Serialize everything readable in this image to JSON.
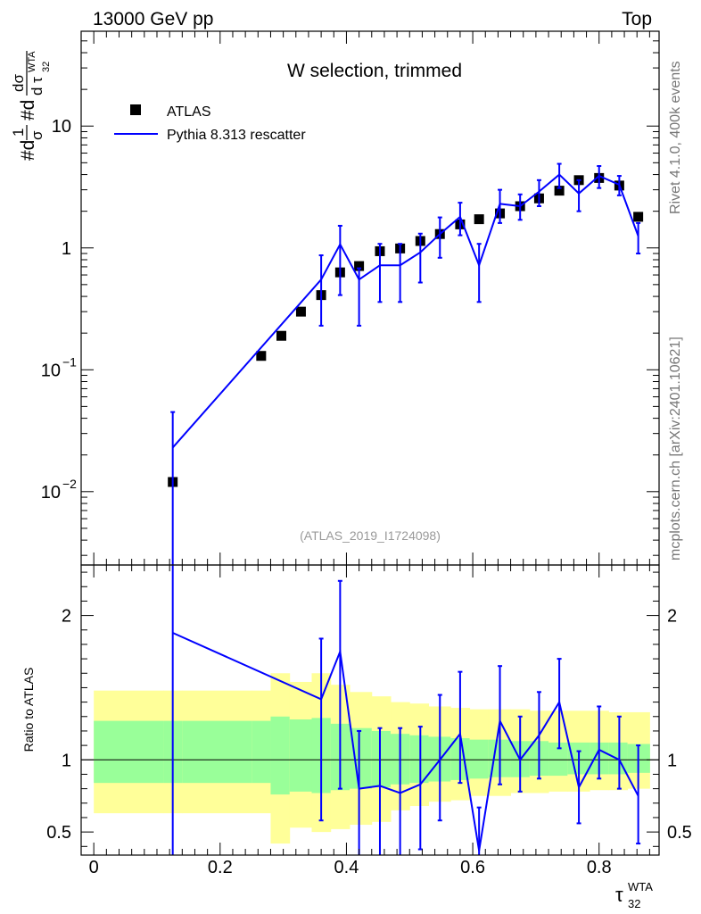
{
  "header": {
    "left": "13000 GeV pp",
    "right": "Top"
  },
  "main_panel": {
    "title": "W selection, trimmed",
    "ylabel_parts": [
      "#d",
      "1",
      "σ",
      "#d",
      "dσ",
      "d τ",
      "WTA",
      "32"
    ],
    "analysis_id": "(ATLAS_2019_I1724098)"
  },
  "ratio_panel": {
    "ylabel": "Ratio to ATLAS"
  },
  "side_text": {
    "rivet": "Rivet 4.1.0,  400k events",
    "mcplots": "mcplots.cern.ch [arXiv:2401.10621]"
  },
  "xaxis_label": {
    "base": "τ",
    "sup": "WTA",
    "sub": "32"
  },
  "chart_data": [
    {
      "type": "scatter",
      "panel": "main",
      "yscale": "log",
      "xlim": [
        -0.02,
        0.895
      ],
      "ylim": [
        0.0025,
        60
      ],
      "xticks": [
        "0",
        "0.2",
        "0.4",
        "0.6",
        "0.8"
      ],
      "xtick_values": [
        0,
        0.2,
        0.4,
        0.6,
        0.8
      ],
      "yticks": [
        {
          "value": 0.01,
          "base": "10",
          "exp": "−2"
        },
        {
          "value": 0.1,
          "base": "10",
          "exp": "−1"
        },
        {
          "value": 1,
          "base": "1",
          "exp": ""
        },
        {
          "value": 10,
          "base": "10",
          "exp": ""
        }
      ],
      "legend": [
        {
          "label": "ATLAS",
          "marker": "square",
          "color": "#000000"
        },
        {
          "label": "Pythia 8.313 rescatter",
          "marker": "line",
          "color": "#0000ff"
        }
      ],
      "series": [
        {
          "name": "ATLAS",
          "x": [
            0.125,
            0.265,
            0.297,
            0.328,
            0.36,
            0.39,
            0.42,
            0.453,
            0.485,
            0.517,
            0.548,
            0.58,
            0.61,
            0.643,
            0.675,
            0.705,
            0.737,
            0.768,
            0.8,
            0.832,
            0.862
          ],
          "y": [
            0.012,
            0.13,
            0.19,
            0.3,
            0.41,
            0.63,
            0.71,
            0.94,
            0.99,
            1.14,
            1.3,
            1.56,
            1.72,
            1.92,
            2.2,
            2.55,
            2.95,
            3.6,
            3.75,
            3.25,
            1.8
          ]
        },
        {
          "name": "Pythia 8.313 rescatter",
          "x": [
            0.125,
            0.36,
            0.39,
            0.42,
            0.453,
            0.485,
            0.517,
            0.548,
            0.58,
            0.61,
            0.643,
            0.675,
            0.705,
            0.737,
            0.768,
            0.8,
            0.832,
            0.862
          ],
          "y": [
            0.023,
            0.55,
            1.07,
            0.55,
            0.72,
            0.72,
            0.92,
            1.3,
            1.8,
            0.72,
            2.3,
            2.2,
            2.9,
            4.0,
            2.8,
            3.9,
            3.3,
            1.25
          ],
          "yerr_low": [
            0.023,
            0.32,
            0.66,
            0.32,
            0.36,
            0.36,
            0.4,
            0.47,
            0.53,
            0.36,
            0.7,
            0.5,
            0.7,
            0.9,
            0.8,
            0.8,
            0.6,
            0.35
          ],
          "yerr_high": [
            0.022,
            0.32,
            0.45,
            0.13,
            0.36,
            0.36,
            0.39,
            0.48,
            0.55,
            0.36,
            0.7,
            0.55,
            0.7,
            0.9,
            0.8,
            0.8,
            0.6,
            0.35
          ]
        }
      ]
    },
    {
      "type": "line",
      "panel": "ratio",
      "xlim": [
        -0.02,
        0.895
      ],
      "ylim": [
        0.34,
        2.35
      ],
      "yticks": [
        "0.5",
        "1",
        "2"
      ],
      "ytick_values": [
        0.5,
        1,
        2
      ],
      "reference_line": 1,
      "uncertainty_bands": {
        "edges": [
          0,
          0.11,
          0.14,
          0.25,
          0.28,
          0.31,
          0.345,
          0.375,
          0.405,
          0.44,
          0.47,
          0.5,
          0.53,
          0.565,
          0.595,
          0.625,
          0.66,
          0.69,
          0.72,
          0.75,
          0.785,
          0.815,
          0.845,
          0.88
        ],
        "yellow_low": [
          0.63,
          0.63,
          0.63,
          0.63,
          0.42,
          0.53,
          0.5,
          0.52,
          0.55,
          0.57,
          0.65,
          0.68,
          0.71,
          0.72,
          0.75,
          0.75,
          0.77,
          0.77,
          0.78,
          0.78,
          0.79,
          0.79,
          0.8
        ],
        "yellow_high": [
          1.48,
          1.48,
          1.48,
          1.48,
          1.6,
          1.54,
          1.6,
          1.52,
          1.47,
          1.44,
          1.4,
          1.39,
          1.37,
          1.36,
          1.35,
          1.35,
          1.35,
          1.34,
          1.34,
          1.34,
          1.34,
          1.33,
          1.33
        ],
        "green_low": [
          0.84,
          0.84,
          0.84,
          0.84,
          0.76,
          0.78,
          0.77,
          0.79,
          0.8,
          0.81,
          0.83,
          0.84,
          0.85,
          0.86,
          0.87,
          0.88,
          0.88,
          0.89,
          0.89,
          0.9,
          0.9,
          0.9,
          0.91
        ],
        "green_high": [
          1.27,
          1.27,
          1.27,
          1.27,
          1.3,
          1.28,
          1.29,
          1.25,
          1.22,
          1.2,
          1.18,
          1.17,
          1.16,
          1.15,
          1.14,
          1.14,
          1.13,
          1.13,
          1.12,
          1.12,
          1.12,
          1.12,
          1.11
        ]
      },
      "series": [
        {
          "name": "Pythia 8.313 rescatter / ATLAS",
          "x": [
            0.125,
            0.36,
            0.39,
            0.42,
            0.453,
            0.485,
            0.517,
            0.548,
            0.58,
            0.61,
            0.643,
            0.675,
            0.705,
            0.737,
            0.768,
            0.8,
            0.832,
            0.862
          ],
          "y": [
            1.88,
            1.42,
            1.75,
            0.8,
            0.82,
            0.77,
            0.83,
            1.0,
            1.18,
            0.37,
            1.27,
            1.0,
            1.17,
            1.4,
            0.81,
            1.07,
            1.0,
            0.75
          ],
          "yerr_low": [
            1.6,
            0.84,
            0.95,
            0.5,
            0.5,
            0.5,
            0.45,
            0.42,
            0.34,
            0.05,
            0.44,
            0.22,
            0.3,
            0.32,
            0.25,
            0.2,
            0.2,
            0.33
          ],
          "yerr_high": [
            0.47,
            0.42,
            0.49,
            0.4,
            0.4,
            0.45,
            0.4,
            0.45,
            0.43,
            0.3,
            0.38,
            0.3,
            0.3,
            0.3,
            0.25,
            0.3,
            0.3,
            0.35
          ]
        }
      ]
    }
  ]
}
